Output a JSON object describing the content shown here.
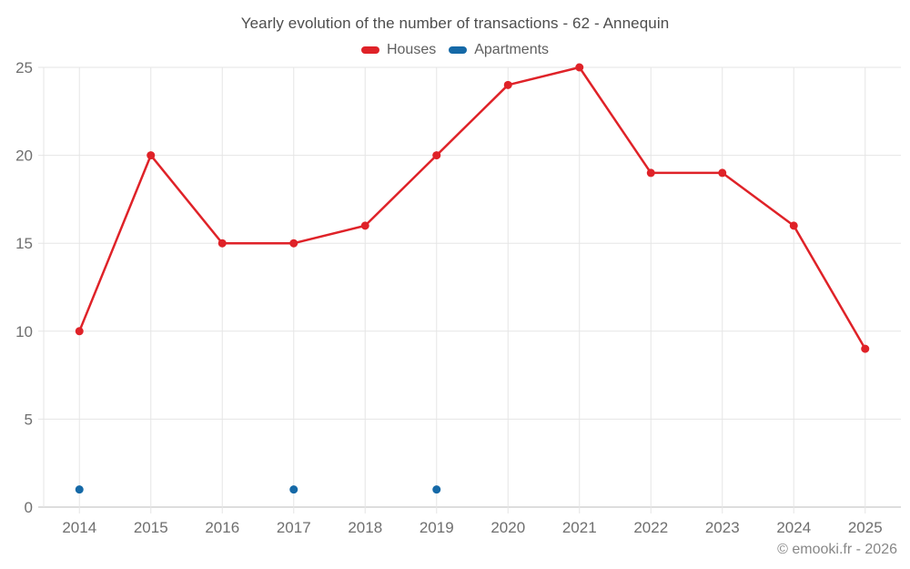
{
  "chart_data": {
    "type": "line",
    "title": "Yearly evolution of the number of transactions - 62 - Annequin",
    "categories": [
      "2014",
      "2015",
      "2016",
      "2017",
      "2018",
      "2019",
      "2020",
      "2021",
      "2022",
      "2023",
      "2024",
      "2025"
    ],
    "series": [
      {
        "name": "Houses",
        "color": "#df2228",
        "marker": "circle",
        "values": [
          10,
          20,
          15,
          15,
          16,
          20,
          24,
          25,
          19,
          19,
          16,
          9
        ]
      },
      {
        "name": "Apartments",
        "color": "#1569a7",
        "marker": "circle",
        "values": [
          1,
          null,
          null,
          1,
          null,
          1,
          null,
          null,
          null,
          null,
          null,
          null
        ]
      }
    ],
    "xlabel": "",
    "ylabel": "",
    "ylim": [
      0,
      25
    ],
    "yticks": [
      0,
      5,
      10,
      15,
      20,
      25
    ],
    "grid": true,
    "legend_position": "top"
  },
  "footer": {
    "text": "© emooki.fr - 2026"
  },
  "colors": {
    "background": "#ffffff",
    "gridline": "#e5e5e5",
    "axis_line": "#d2d2d2",
    "tick_label": "#6f6f6f",
    "title_text": "#4d4d4d",
    "legend_text": "#5f5f5f",
    "footer_text": "#878787"
  }
}
